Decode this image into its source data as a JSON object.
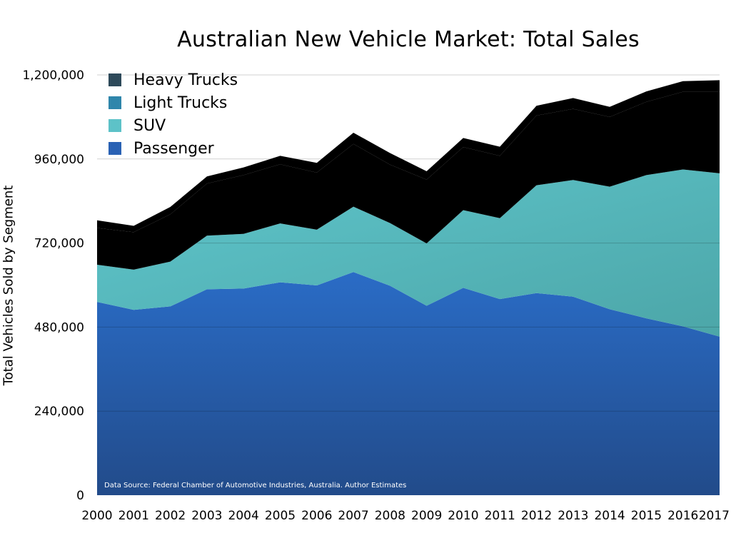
{
  "chart_data": {
    "type": "area",
    "stacked": true,
    "title": "Australian New Vehicle Market: Total Sales",
    "xlabel": "",
    "ylabel": "Total Vehicles Sold by Segment",
    "ylim": [
      0,
      1200000
    ],
    "y_ticks": [
      "0",
      "240,000",
      "480,000",
      "720,000",
      "960,000",
      "1,200,000"
    ],
    "categories": [
      "2000",
      "2001",
      "2002",
      "2003",
      "2004",
      "2005",
      "2006",
      "2007",
      "2008",
      "2009",
      "2010",
      "2011",
      "2012",
      "2013",
      "2014",
      "2015",
      "2016",
      "2017"
    ],
    "series": [
      {
        "name": "Passenger",
        "color": "#2a62b4",
        "values": [
          552000,
          529000,
          539000,
          588000,
          590000,
          608000,
          599000,
          637000,
          598000,
          541000,
          592000,
          560000,
          577000,
          567000,
          531000,
          505000,
          482000,
          453000
        ]
      },
      {
        "name": "SUV",
        "color": "#5dc2c8",
        "values": [
          106000,
          115000,
          128000,
          153000,
          156000,
          168000,
          159000,
          187000,
          179000,
          178000,
          222000,
          231000,
          308000,
          333000,
          350000,
          409000,
          448000,
          466000
        ]
      },
      {
        "name": "Light Trucks",
        "color": "#2f86ab",
        "values": [
          105000,
          107000,
          135000,
          149000,
          168000,
          169000,
          163000,
          179000,
          167000,
          182000,
          180000,
          178000,
          199000,
          203000,
          199000,
          209000,
          222000,
          233000
        ]
      },
      {
        "name": "Heavy Trucks",
        "color": "#2e4a5a",
        "values": [
          22000,
          18000,
          21000,
          20000,
          22000,
          24000,
          28000,
          32000,
          33000,
          24000,
          26000,
          26000,
          28000,
          31000,
          29000,
          30000,
          30000,
          33000
        ]
      }
    ],
    "legend_order": [
      "Heavy Trucks",
      "Light Trucks",
      "SUV",
      "Passenger"
    ],
    "legend_position": "top-left",
    "grid": true,
    "annotation": "Data Source: Federal Chamber of Automotive Industries, Australia.  Author Estimates"
  }
}
